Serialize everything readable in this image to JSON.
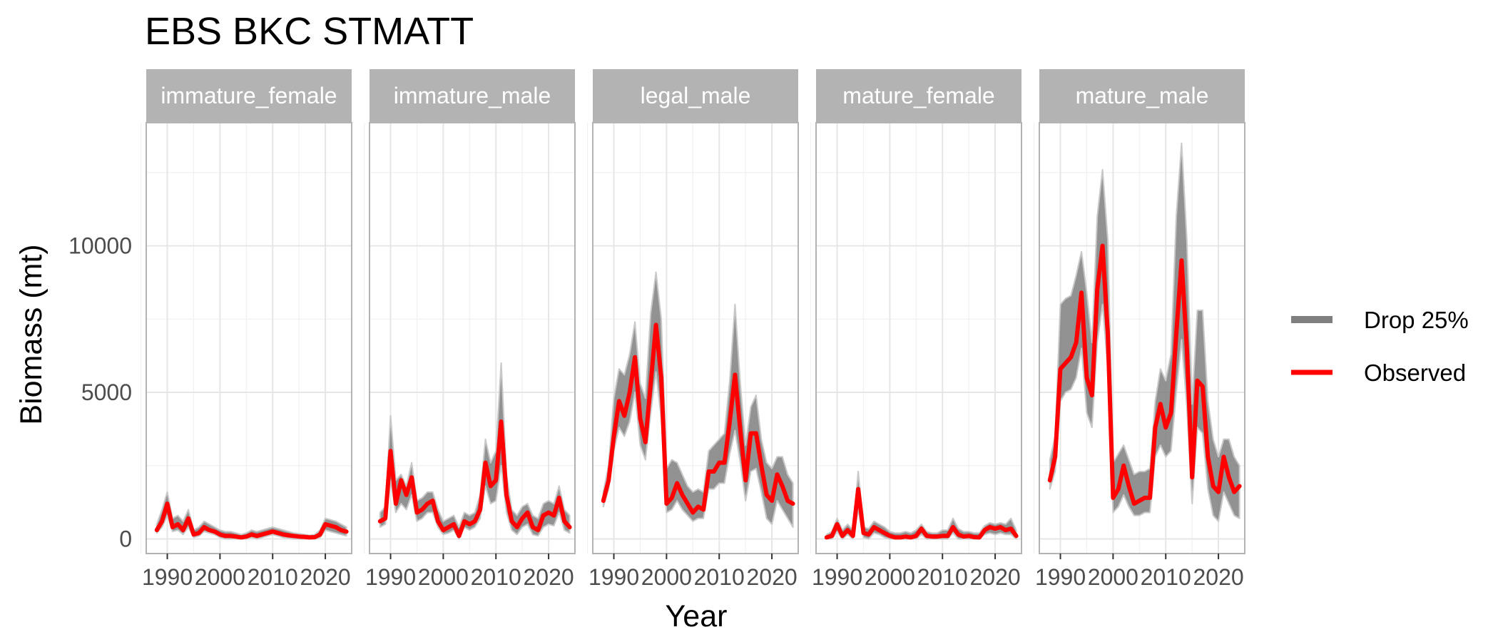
{
  "chart_data": {
    "type": "line",
    "title": "EBS BKC STMATT",
    "xlabel": "Year",
    "ylabel": "Biomass (mt)",
    "x_ticks": [
      1990,
      2000,
      2010,
      2020
    ],
    "y_ticks": [
      0,
      5000,
      10000
    ],
    "xlim": [
      1986,
      2025
    ],
    "ylim": [
      -500,
      14200
    ],
    "grid": true,
    "legend_position": "right",
    "legend": [
      {
        "name": "Drop 25%",
        "color": "#7f7f7f"
      },
      {
        "name": "Observed",
        "color": "#ff0000"
      }
    ],
    "colors": {
      "strip": "#b3b3b3",
      "grid": "#e6e6e6",
      "panel_border": "#b3b3b3"
    },
    "years": [
      1988,
      1989,
      1990,
      1991,
      1992,
      1993,
      1994,
      1995,
      1996,
      1997,
      1998,
      1999,
      2000,
      2001,
      2002,
      2003,
      2004,
      2005,
      2006,
      2007,
      2008,
      2009,
      2010,
      2011,
      2012,
      2013,
      2014,
      2015,
      2016,
      2017,
      2018,
      2019,
      2020,
      2021,
      2022,
      2023,
      2024
    ],
    "panels": [
      {
        "name": "immature_female",
        "observed": [
          300,
          600,
          1200,
          400,
          500,
          300,
          700,
          150,
          200,
          400,
          300,
          250,
          150,
          100,
          100,
          80,
          50,
          80,
          150,
          100,
          150,
          200,
          250,
          200,
          150,
          120,
          100,
          80,
          70,
          50,
          60,
          150,
          500,
          450,
          400,
          300,
          250
        ],
        "drop_upper": [
          500,
          1000,
          1600,
          700,
          800,
          600,
          1000,
          300,
          400,
          600,
          500,
          400,
          300,
          250,
          250,
          200,
          150,
          200,
          300,
          250,
          300,
          350,
          400,
          350,
          300,
          250,
          200,
          180,
          150,
          120,
          150,
          300,
          700,
          650,
          600,
          500,
          400
        ],
        "drop_lower": [
          200,
          400,
          800,
          250,
          300,
          150,
          400,
          50,
          100,
          250,
          200,
          150,
          50,
          0,
          0,
          0,
          0,
          0,
          50,
          0,
          50,
          100,
          150,
          100,
          50,
          30,
          0,
          0,
          0,
          0,
          0,
          50,
          300,
          250,
          200,
          150,
          100
        ]
      },
      {
        "name": "immature_male",
        "observed": [
          600,
          700,
          3000,
          1200,
          2000,
          1500,
          2100,
          900,
          1000,
          1200,
          1300,
          600,
          300,
          400,
          500,
          100,
          600,
          500,
          600,
          1000,
          2600,
          1800,
          2000,
          4000,
          1500,
          600,
          400,
          700,
          900,
          400,
          300,
          800,
          900,
          800,
          1400,
          600,
          400
        ],
        "drop_upper": [
          900,
          1100,
          4200,
          2000,
          2200,
          1800,
          2600,
          1300,
          1400,
          1600,
          1600,
          1000,
          600,
          700,
          800,
          400,
          900,
          800,
          900,
          1500,
          3400,
          2600,
          3000,
          6000,
          2200,
          1000,
          800,
          1100,
          1200,
          800,
          700,
          1200,
          1300,
          1200,
          1800,
          1000,
          800
        ],
        "drop_lower": [
          400,
          500,
          2000,
          900,
          1200,
          1000,
          1500,
          600,
          700,
          900,
          900,
          400,
          150,
          200,
          300,
          0,
          400,
          300,
          400,
          700,
          1800,
          1200,
          1300,
          2500,
          900,
          300,
          150,
          400,
          500,
          150,
          100,
          400,
          500,
          450,
          900,
          300,
          200
        ]
      },
      {
        "name": "legal_male",
        "observed": [
          1300,
          2000,
          3500,
          4700,
          4200,
          5000,
          6200,
          4100,
          3300,
          5300,
          7300,
          5500,
          1200,
          1400,
          1900,
          1500,
          1200,
          900,
          1100,
          1000,
          2300,
          2300,
          2600,
          2600,
          4000,
          5600,
          3700,
          2000,
          3600,
          3600,
          2500,
          1500,
          1300,
          2200,
          1800,
          1300,
          1200
        ],
        "drop_upper": [
          1600,
          2500,
          4800,
          5800,
          5600,
          6300,
          7400,
          5300,
          4800,
          7700,
          9100,
          7500,
          2400,
          2700,
          2600,
          2200,
          1800,
          1600,
          1700,
          1600,
          3000,
          3200,
          3400,
          3600,
          5400,
          8000,
          5300,
          3200,
          4500,
          4900,
          3400,
          2600,
          2400,
          2800,
          2800,
          2200,
          1900
        ],
        "drop_lower": [
          1100,
          1700,
          3000,
          3800,
          3500,
          4000,
          5000,
          3200,
          2700,
          4300,
          5700,
          4100,
          900,
          1000,
          1300,
          1000,
          800,
          600,
          700,
          700,
          1700,
          1700,
          1900,
          1900,
          2900,
          3700,
          2600,
          1300,
          2300,
          2400,
          1600,
          700,
          500,
          1300,
          1000,
          700,
          400
        ]
      },
      {
        "name": "mature_female",
        "observed": [
          50,
          100,
          500,
          100,
          300,
          100,
          1700,
          200,
          150,
          400,
          300,
          200,
          100,
          50,
          50,
          80,
          50,
          100,
          350,
          100,
          80,
          80,
          100,
          100,
          400,
          150,
          80,
          100,
          60,
          50,
          300,
          400,
          350,
          400,
          300,
          350,
          100
        ],
        "drop_upper": [
          150,
          250,
          700,
          300,
          500,
          300,
          2300,
          400,
          350,
          600,
          500,
          400,
          250,
          200,
          200,
          250,
          200,
          300,
          500,
          250,
          200,
          200,
          300,
          300,
          700,
          350,
          250,
          250,
          200,
          200,
          450,
          550,
          500,
          550,
          500,
          700,
          300
        ],
        "drop_lower": [
          0,
          0,
          250,
          0,
          150,
          0,
          1000,
          50,
          0,
          200,
          150,
          50,
          0,
          0,
          0,
          0,
          0,
          0,
          150,
          0,
          0,
          0,
          0,
          0,
          200,
          0,
          0,
          0,
          0,
          0,
          150,
          200,
          150,
          200,
          150,
          150,
          0
        ]
      },
      {
        "name": "mature_male",
        "observed": [
          2000,
          2800,
          5800,
          6000,
          6200,
          6700,
          8400,
          5500,
          4900,
          8500,
          10000,
          7000,
          1400,
          1700,
          2500,
          1800,
          1200,
          1300,
          1400,
          1400,
          3800,
          4600,
          3800,
          4300,
          7000,
          9500,
          6500,
          2100,
          5400,
          5200,
          2800,
          1800,
          1600,
          2800,
          2100,
          1600,
          1800
        ],
        "drop_upper": [
          2700,
          3500,
          8000,
          8200,
          8300,
          9000,
          9800,
          8400,
          6700,
          11000,
          12600,
          10200,
          2600,
          2900,
          3200,
          2700,
          2200,
          2300,
          2300,
          2400,
          4700,
          5800,
          5400,
          6300,
          11000,
          13500,
          10200,
          4600,
          7800,
          7800,
          4700,
          3400,
          2800,
          3400,
          3400,
          2800,
          2500
        ],
        "drop_lower": [
          1700,
          2300,
          4700,
          5000,
          5100,
          5500,
          6500,
          4300,
          3800,
          6700,
          8000,
          5800,
          900,
          1100,
          1500,
          1100,
          800,
          800,
          900,
          900,
          2800,
          3200,
          2800,
          3000,
          5000,
          6800,
          4500,
          1200,
          3800,
          3600,
          1700,
          800,
          600,
          1600,
          1200,
          800,
          700
        ]
      }
    ]
  }
}
